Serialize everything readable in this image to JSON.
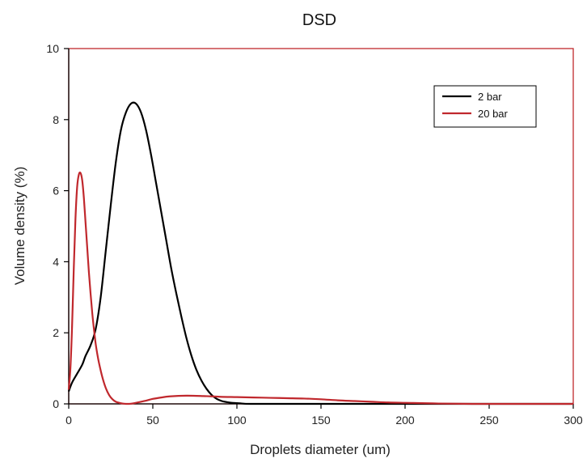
{
  "chart_data": {
    "type": "line",
    "title": "DSD",
    "xlabel": "Droplets diameter (um)",
    "ylabel": "Volume density (%)",
    "xlim": [
      0,
      300
    ],
    "ylim": [
      0,
      10
    ],
    "xticks": [
      0,
      50,
      100,
      150,
      200,
      250,
      300
    ],
    "yticks": [
      0,
      2,
      4,
      6,
      8,
      10
    ],
    "grid": false,
    "legend_position": "top-right",
    "series": [
      {
        "name": "2 bar",
        "color": "#000000",
        "x": [
          0,
          2,
          5,
          8,
          10,
          13,
          16,
          19,
          22,
          25,
          28,
          31,
          34,
          37,
          40,
          43,
          46,
          49,
          52,
          55,
          58,
          61,
          64,
          67,
          70,
          73,
          76,
          79,
          82,
          85,
          88,
          91,
          94,
          97,
          100,
          103,
          108,
          130,
          160,
          200,
          240,
          270,
          300
        ],
        "y": [
          0.35,
          0.6,
          0.85,
          1.1,
          1.35,
          1.65,
          2.1,
          3.0,
          4.3,
          5.6,
          6.8,
          7.7,
          8.2,
          8.45,
          8.45,
          8.2,
          7.7,
          7.0,
          6.2,
          5.4,
          4.6,
          3.8,
          3.1,
          2.45,
          1.85,
          1.35,
          0.95,
          0.65,
          0.42,
          0.25,
          0.14,
          0.08,
          0.05,
          0.03,
          0.02,
          0.01,
          0.0,
          0.0,
          0.0,
          0.0,
          0.0,
          0.0,
          0.0
        ]
      },
      {
        "name": "20 bar",
        "color": "#c0282d",
        "x": [
          0,
          1,
          2,
          3,
          4,
          5,
          6,
          7,
          8,
          9,
          10,
          11,
          12,
          13,
          14,
          15,
          16,
          17,
          18,
          20,
          22,
          24,
          26,
          28,
          30,
          32,
          34,
          36,
          40,
          45,
          50,
          55,
          60,
          70,
          80,
          90,
          100,
          110,
          120,
          130,
          140,
          150,
          160,
          170,
          180,
          190,
          200,
          210,
          220,
          240,
          270,
          300
        ],
        "y": [
          0.4,
          1.0,
          2.2,
          3.8,
          5.2,
          6.1,
          6.45,
          6.5,
          6.3,
          5.8,
          5.1,
          4.4,
          3.7,
          3.1,
          2.55,
          2.1,
          1.7,
          1.4,
          1.15,
          0.75,
          0.45,
          0.25,
          0.13,
          0.06,
          0.03,
          0.01,
          0.0,
          0.0,
          0.03,
          0.08,
          0.14,
          0.18,
          0.21,
          0.23,
          0.22,
          0.2,
          0.19,
          0.18,
          0.17,
          0.16,
          0.15,
          0.13,
          0.1,
          0.08,
          0.06,
          0.04,
          0.03,
          0.02,
          0.01,
          0.0,
          0.0,
          0.0
        ]
      }
    ]
  }
}
